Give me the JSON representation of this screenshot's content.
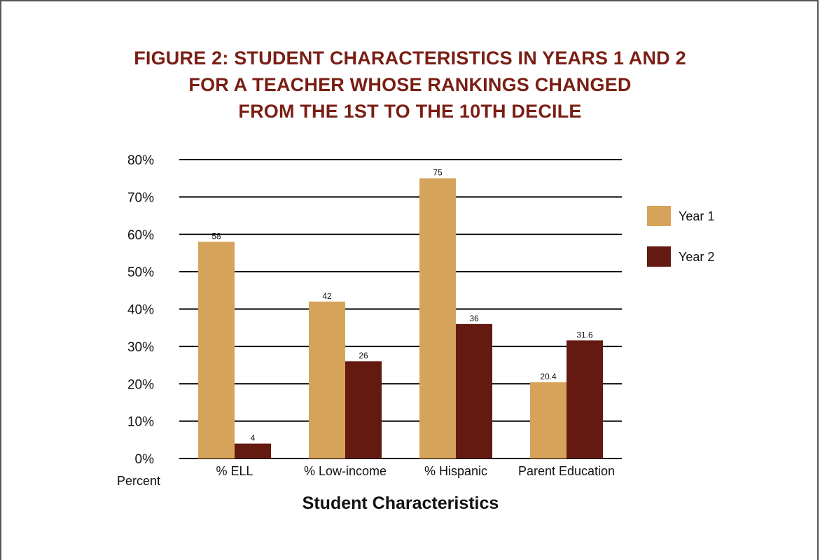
{
  "chart_data": {
    "type": "bar",
    "title_lines": [
      "FIGURE 2: STUDENT CHARACTERISTICS IN YEARS 1 AND 2",
      "FOR A TEACHER WHOSE RANKINGS CHANGED",
      "FROM THE 1ST TO THE 10TH DECILE"
    ],
    "xlabel": "Student Characteristics",
    "ylabel": "Percent",
    "categories": [
      "% ELL",
      "% Low-income",
      "% Hispanic",
      "Parent Education"
    ],
    "series": [
      {
        "name": "Year 1",
        "color": "#d6a35a",
        "values": [
          58,
          42,
          75,
          20.4
        ],
        "labels": [
          "58",
          "42",
          "75",
          "20.4"
        ]
      },
      {
        "name": "Year 2",
        "color": "#641911",
        "values": [
          4,
          26,
          36,
          31.6
        ],
        "labels": [
          "4",
          "26",
          "36",
          "31.6"
        ]
      }
    ],
    "ylim": [
      0,
      80
    ],
    "yticks": [
      0,
      10,
      20,
      30,
      40,
      50,
      60,
      70,
      80
    ],
    "ytick_labels": [
      "0%",
      "10%",
      "20%",
      "30%",
      "40%",
      "50%",
      "60%",
      "70%",
      "80%"
    ],
    "grid": true,
    "legend_position": "right",
    "title_color": "#7a1e14"
  }
}
